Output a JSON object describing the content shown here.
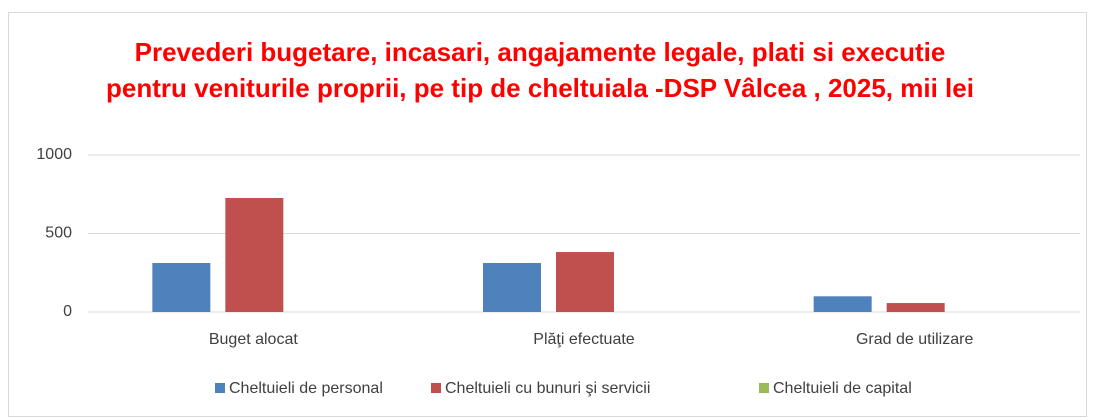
{
  "chart_data": {
    "type": "bar",
    "title": "Prevederi bugetare, incasari, angajamente legale, plati si executie pentru veniturile proprii, pe tip de cheltuiala -DSP Vâlcea , 2025, mii lei",
    "categories": [
      "Buget alocat",
      "Plăţi efectuate",
      "Grad de utilizare"
    ],
    "series": [
      {
        "name": "Cheltuieli de personal",
        "color": "#4f81bd",
        "values": [
          312,
          312,
          100
        ]
      },
      {
        "name": "Cheltuieli cu bunuri şi servicii",
        "color": "#c0504d",
        "values": [
          726,
          382,
          57
        ]
      },
      {
        "name": "Cheltuieli de capital",
        "color": "#9bbb59",
        "values": [
          0,
          0,
          0
        ]
      }
    ],
    "ylim": [
      0,
      1000
    ],
    "yticks": [
      0,
      500,
      1000
    ],
    "grid": true,
    "legend": "bottom"
  }
}
